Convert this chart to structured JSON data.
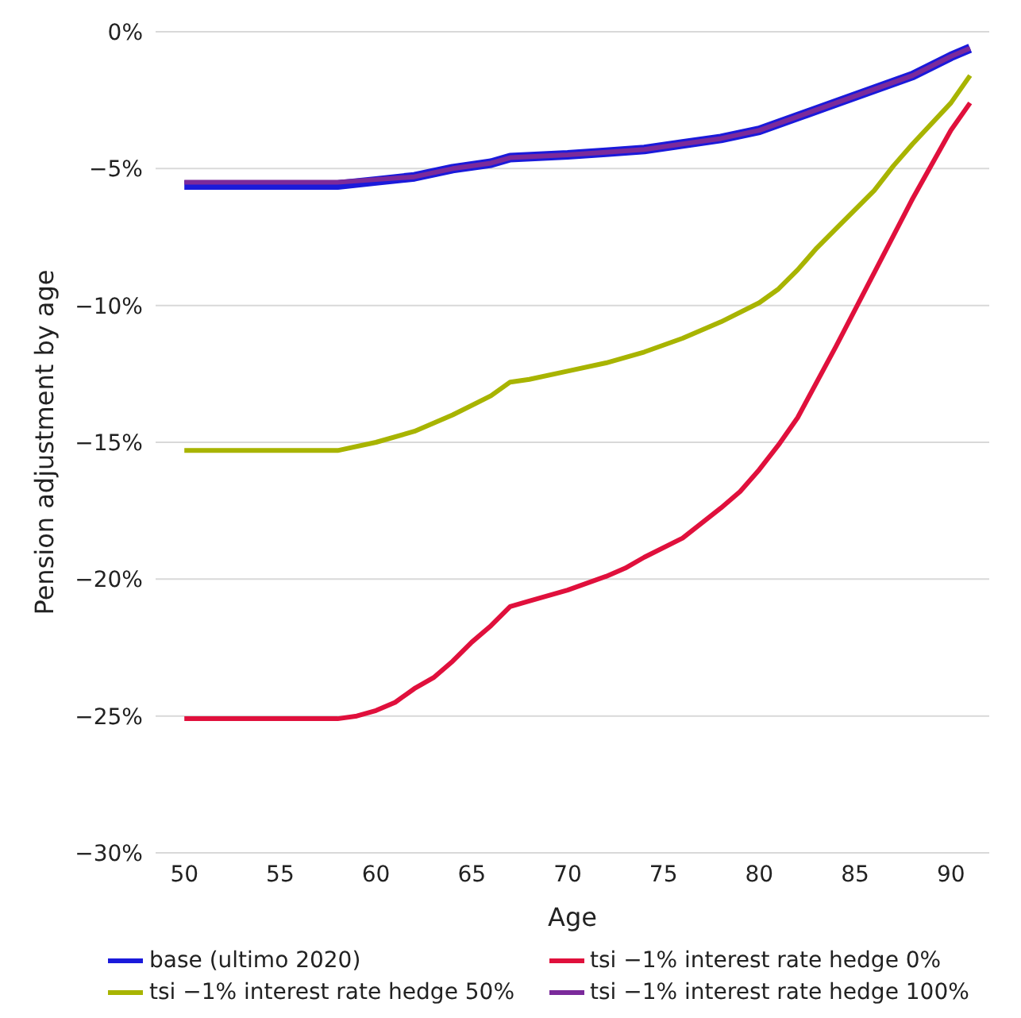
{
  "chart_data": {
    "type": "line",
    "xlabel": "Age",
    "ylabel": "Pension adjustment by age",
    "xlim": [
      48.5,
      92
    ],
    "xticks": [
      50,
      55,
      60,
      65,
      70,
      75,
      80,
      85,
      90
    ],
    "ylim": [
      -30,
      0
    ],
    "yticks": [
      {
        "value": -30,
        "label": "−30%"
      },
      {
        "value": -25,
        "label": "−25%"
      },
      {
        "value": -20,
        "label": "−20%"
      },
      {
        "value": -15,
        "label": "−15%"
      },
      {
        "value": -10,
        "label": "−10%"
      },
      {
        "value": -5,
        "label": "−5%"
      },
      {
        "value": 0,
        "label": "0%"
      }
    ],
    "grid": "y",
    "legend": "bottom",
    "marker": "none",
    "line_style": "solid",
    "series": [
      {
        "name": "base (ultimo 2020)",
        "color": "#1a1adb",
        "x": [
          50,
          52,
          54,
          56,
          58,
          60,
          62,
          64,
          66,
          67,
          70,
          72,
          74,
          76,
          78,
          80,
          82,
          84,
          86,
          88,
          90,
          91
        ],
        "values": [
          -5.6,
          -5.6,
          -5.6,
          -5.6,
          -5.6,
          -5.45,
          -5.3,
          -5.0,
          -4.8,
          -4.6,
          -4.5,
          -4.4,
          -4.3,
          -4.1,
          -3.9,
          -3.6,
          -3.1,
          -2.6,
          -2.1,
          -1.6,
          -0.9,
          -0.6
        ]
      },
      {
        "name": "tsi −1% interest rate hedge 0%",
        "color": "#e0103c",
        "x": [
          50,
          52,
          54,
          56,
          58,
          59,
          60,
          61,
          62,
          63,
          64,
          65,
          66,
          67,
          68,
          70,
          72,
          73,
          74,
          76,
          78,
          79,
          80,
          81,
          82,
          84,
          86,
          88,
          90,
          91
        ],
        "values": [
          -25.1,
          -25.1,
          -25.1,
          -25.1,
          -25.1,
          -25.0,
          -24.8,
          -24.5,
          -24.0,
          -23.6,
          -23.0,
          -22.3,
          -21.7,
          -21.0,
          -20.8,
          -20.4,
          -19.9,
          -19.6,
          -19.2,
          -18.5,
          -17.4,
          -16.8,
          -16.0,
          -15.1,
          -14.1,
          -11.5,
          -8.8,
          -6.1,
          -3.6,
          -2.6
        ]
      },
      {
        "name": "tsi −1% interest rate hedge 50%",
        "color": "#a8b400",
        "x": [
          50,
          52,
          54,
          56,
          58,
          60,
          62,
          64,
          66,
          67,
          68,
          70,
          72,
          74,
          76,
          78,
          80,
          81,
          82,
          83,
          84,
          86,
          87,
          88,
          90,
          91
        ],
        "values": [
          -15.3,
          -15.3,
          -15.3,
          -15.3,
          -15.3,
          -15.0,
          -14.6,
          -14.0,
          -13.3,
          -12.8,
          -12.7,
          -12.4,
          -12.1,
          -11.7,
          -11.2,
          -10.6,
          -9.9,
          -9.4,
          -8.7,
          -7.9,
          -7.2,
          -5.8,
          -4.9,
          -4.1,
          -2.6,
          -1.6
        ]
      },
      {
        "name": "tsi −1% interest rate hedge 100%",
        "color": "#7b2a9b",
        "x": [
          50,
          52,
          54,
          56,
          58,
          60,
          62,
          64,
          66,
          67,
          70,
          72,
          74,
          76,
          78,
          80,
          82,
          84,
          86,
          88,
          90,
          91
        ],
        "values": [
          -5.5,
          -5.5,
          -5.5,
          -5.5,
          -5.5,
          -5.4,
          -5.3,
          -5.0,
          -4.8,
          -4.6,
          -4.5,
          -4.4,
          -4.3,
          -4.1,
          -3.9,
          -3.6,
          -3.1,
          -2.6,
          -2.1,
          -1.6,
          -0.9,
          -0.6
        ]
      }
    ]
  }
}
